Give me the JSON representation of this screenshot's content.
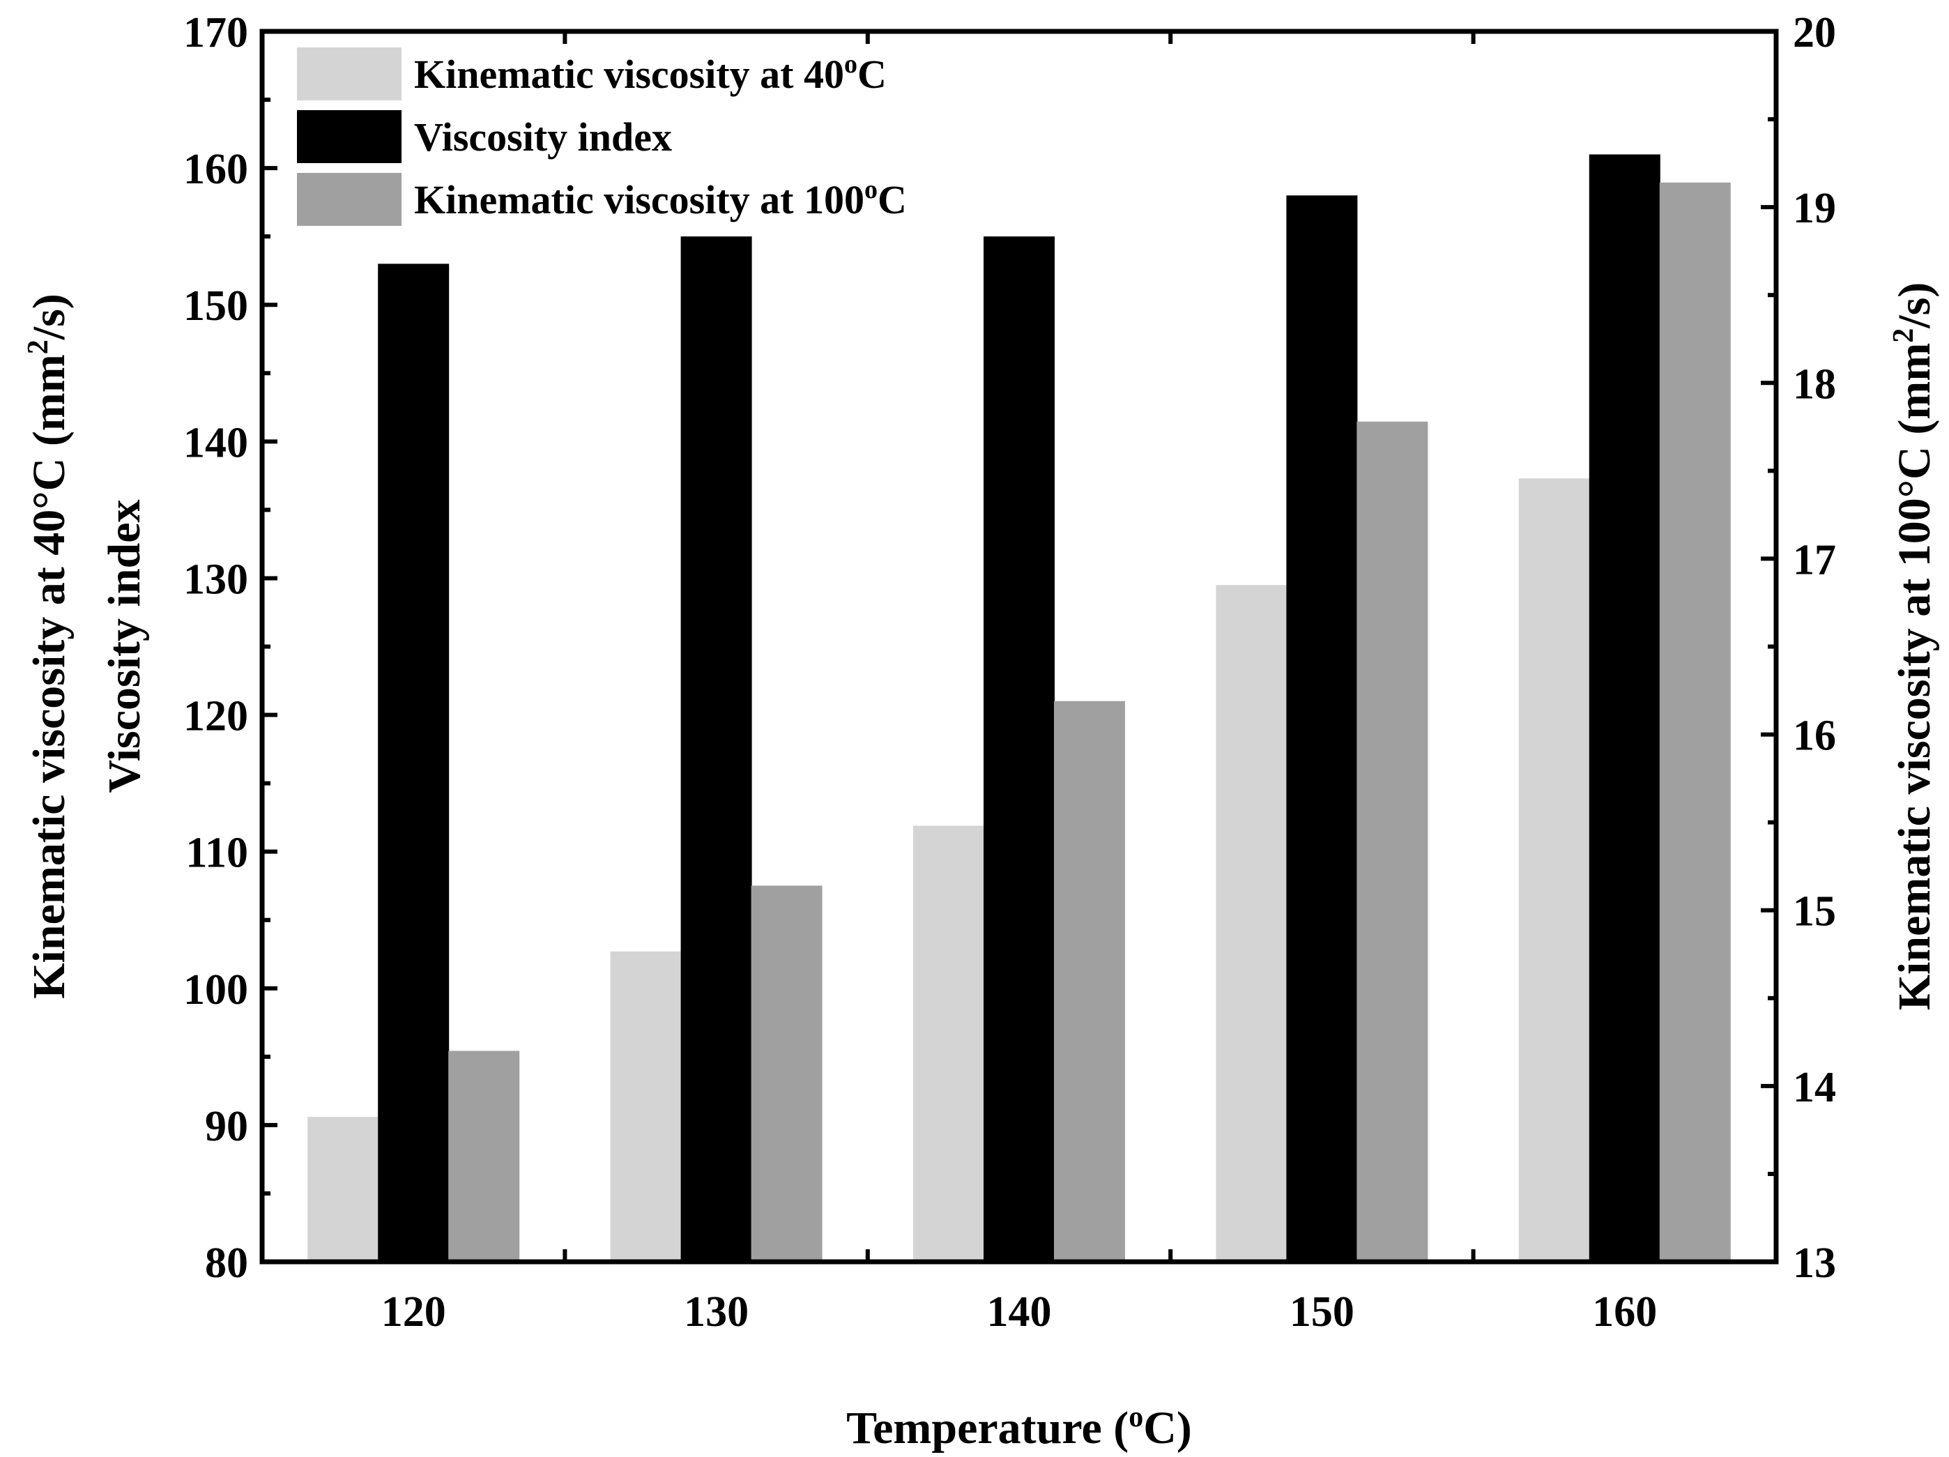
{
  "chart_data": {
    "type": "bar",
    "xlabel": "Temperature (oC)",
    "xlabel_parts": {
      "pre": "Temperature (",
      "sup": "o",
      "post": "C)"
    },
    "ylabel_left": "Kinematic viscosity at 40°C (mm2/s) Viscosity index",
    "ylabel_left_line1": {
      "pre": "Kinematic viscosity at 40°C (mm",
      "sup": "2",
      "post": "/s)"
    },
    "ylabel_left_line2": "Viscosity index",
    "ylabel_right": "Kinematic viscosity at 100°C (mm2/s)",
    "ylabel_right_parts": {
      "pre": "Kinematic viscosity at 100°C (mm",
      "sup": "2",
      "post": "/s)"
    },
    "categories": [
      "120",
      "130",
      "140",
      "150",
      "160"
    ],
    "ylim_left": [
      80,
      170
    ],
    "yticks_left": [
      "80",
      "90",
      "100",
      "110",
      "120",
      "130",
      "140",
      "150",
      "160",
      "170"
    ],
    "ylim_right": [
      13,
      20
    ],
    "yticks_right": [
      "13",
      "14",
      "15",
      "16",
      "17",
      "18",
      "19",
      "20"
    ],
    "grid": false,
    "legend_position": "top-left",
    "series": [
      {
        "name": "Kinematic viscosity at 40oC",
        "label_parts": {
          "pre": "Kinematic viscosity at 40",
          "sup": "o",
          "post": "C"
        },
        "axis": "left",
        "color": "#d4d4d4",
        "values": [
          90.6,
          102.7,
          111.9,
          129.5,
          137.3
        ]
      },
      {
        "name": "Viscosity index",
        "label_parts": {
          "pre": "Viscosity index",
          "sup": "",
          "post": ""
        },
        "axis": "left",
        "color": "#000000",
        "values": [
          153,
          155,
          155,
          158,
          161
        ]
      },
      {
        "name": "Kinematic viscosity at 100oC",
        "label_parts": {
          "pre": "Kinematic viscosity at 100",
          "sup": "o",
          "post": "C"
        },
        "axis": "right",
        "color": "#a0a0a0",
        "values": [
          14.2,
          15.14,
          16.19,
          17.78,
          19.14
        ]
      }
    ]
  }
}
